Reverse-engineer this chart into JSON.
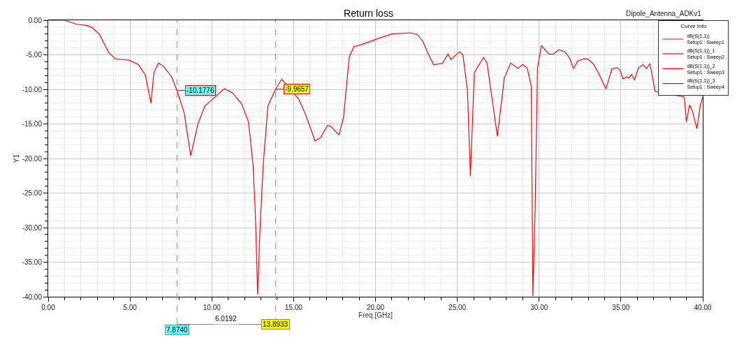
{
  "chart_data": {
    "type": "line",
    "title": "Return loss",
    "subtitle": "Dipole_Antenna_ADKv1",
    "xlabel": "Freq [GHz]",
    "ylabel": "Y1",
    "legend_title": "Curve Info",
    "xlim": [
      0,
      40
    ],
    "xticks": [
      {
        "value": 0,
        "label": "0.00"
      },
      {
        "value": 5,
        "label": "5.00"
      },
      {
        "value": 10,
        "label": "10.00"
      },
      {
        "value": 15,
        "label": "15.00"
      },
      {
        "value": 20,
        "label": "20.00"
      },
      {
        "value": 25,
        "label": "25.00"
      },
      {
        "value": 30,
        "label": "30.00"
      },
      {
        "value": 35,
        "label": "35.00"
      },
      {
        "value": 40,
        "label": "40.00"
      }
    ],
    "ylim": [
      -40,
      0
    ],
    "yticks": [
      {
        "value": 0,
        "label": "0.00"
      },
      {
        "value": -5,
        "label": "-5.00"
      },
      {
        "value": -10,
        "label": "-10.00"
      },
      {
        "value": -15,
        "label": "-15.00"
      },
      {
        "value": -20,
        "label": "-20.00"
      },
      {
        "value": -25,
        "label": "-25.00"
      },
      {
        "value": -30,
        "label": "-30.00"
      },
      {
        "value": -35,
        "label": "-35.00"
      },
      {
        "value": -40,
        "label": "-40.00"
      }
    ],
    "x": [
      0.04,
      1.02,
      1.72,
      2.35,
      2.7,
      3.13,
      3.69,
      4.11,
      4.95,
      5.51,
      5.93,
      6.28,
      6.46,
      6.74,
      7.05,
      7.54,
      7.874,
      8.31,
      8.71,
      9.15,
      9.57,
      10.2,
      10.77,
      11.26,
      11.82,
      12.24,
      12.52,
      12.66,
      12.8,
      12.94,
      13.15,
      13.43,
      13.8933,
      14.27,
      14.76,
      15.32,
      15.74,
      16.3,
      16.65,
      17.07,
      17.28,
      17.77,
      18.05,
      18.4,
      18.68,
      19.18,
      20.02,
      21.0,
      22.12,
      22.54,
      22.89,
      23.24,
      23.55,
      24.08,
      24.43,
      24.61,
      25.13,
      25.34,
      25.62,
      25.8,
      26.04,
      26.6,
      26.81,
      27.17,
      27.45,
      27.87,
      28.26,
      28.71,
      28.99,
      29.27,
      29.52,
      29.62,
      29.76,
      29.9,
      30.14,
      30.6,
      30.88,
      31.2,
      31.58,
      31.86,
      32.1,
      32.35,
      32.77,
      32.98,
      33.33,
      33.68,
      34.08,
      34.45,
      34.74,
      34.95,
      35.13,
      35.37,
      35.5,
      35.65,
      35.83,
      36.07,
      36.35,
      36.56,
      36.77,
      37.09,
      37.54,
      37.79,
      38.3,
      38.87,
      39.0,
      39.19,
      39.36,
      39.64,
      39.85,
      40.0
    ],
    "series": [
      {
        "name": "dB(S(1,1))\nSetup1 : Sweep1",
        "color": "#ff0000",
        "values": [
          0,
          0,
          -0.58,
          -0.75,
          -1.07,
          -2.04,
          -4.64,
          -5.61,
          -5.77,
          -6.42,
          -7.88,
          -12.0,
          -7.56,
          -6.2,
          -6.65,
          -8.2,
          -10.1776,
          -13.4,
          -19.6,
          -15.0,
          -12.4,
          -11.1,
          -9.9,
          -10.5,
          -12.1,
          -14.7,
          -21.0,
          -28.0,
          -39.7,
          -30.3,
          -20.5,
          -12.4,
          -9.9657,
          -8.53,
          null,
          -11.45,
          -13.7,
          -17.45,
          -16.96,
          -15.2,
          -15.35,
          -16.6,
          -14.0,
          -5.3,
          -3.83,
          -3.5,
          -2.76,
          -1.98,
          -1.82,
          -2.04,
          -3.0,
          -4.96,
          -6.42,
          -6.26,
          -4.9,
          -5.67,
          -4.57,
          -4.96,
          -10.15,
          -22.6,
          -7.56,
          -5.38,
          -6.1,
          -12.1,
          -16.8,
          -8.37,
          -6.2,
          -6.97,
          -6.42,
          -6.9,
          -9.5,
          -39.9,
          -27.0,
          -6.9,
          -3.67,
          -4.9,
          -4.9,
          -4.25,
          -4.57,
          -5.45,
          -7.0,
          -5.94,
          -5.55,
          -5.61,
          -6.36,
          -7.88,
          -9.93,
          -7.07,
          -6.85,
          -7.23,
          -8.47,
          -8.2,
          -8.37,
          -7.8,
          -8.63,
          -6.9,
          -6.42,
          -7.0,
          -6.26,
          -10.3,
          null,
          null,
          null,
          -11.1,
          -14.7,
          -12.26,
          -13.07,
          -15.7,
          -12.26,
          -11.1
        ]
      },
      {
        "name": "dB(S(1,1))_1\nSetup1 : Sweep2",
        "color": "#ff0000",
        "values": [
          null,
          null,
          null,
          null,
          null,
          null,
          null,
          null,
          null,
          null,
          null,
          null,
          null,
          null,
          null,
          null,
          null,
          null,
          null,
          null,
          null,
          null,
          null,
          null,
          null,
          null,
          null,
          null,
          null,
          null,
          null,
          null,
          null,
          null,
          null,
          null,
          null,
          null,
          null,
          null,
          null,
          null,
          null,
          null,
          null,
          null,
          null,
          null,
          null,
          null,
          null,
          null,
          null,
          null,
          null,
          null,
          null,
          null,
          null,
          null,
          null,
          null,
          null,
          null,
          null,
          null,
          null,
          null,
          null,
          null,
          null,
          null,
          null,
          null,
          null,
          null,
          null,
          null,
          null,
          null,
          null,
          null,
          null,
          null,
          null,
          null,
          null,
          null,
          null,
          null,
          null,
          null,
          null,
          null,
          null,
          null,
          null,
          null,
          null,
          null,
          null,
          null,
          null,
          null,
          null,
          null,
          null,
          null,
          null,
          null
        ]
      },
      {
        "name": "dB(S(1,1))_2\nSetup1 : Sweep3",
        "color": "#ff0000",
        "values": [
          null,
          null,
          null,
          null,
          null,
          null,
          null,
          null,
          null,
          null,
          null,
          null,
          null,
          null,
          null,
          null,
          null,
          null,
          null,
          null,
          null,
          null,
          null,
          null,
          null,
          null,
          null,
          null,
          null,
          null,
          null,
          null,
          null,
          null,
          null,
          null,
          null,
          null,
          null,
          null,
          null,
          null,
          null,
          null,
          null,
          null,
          null,
          null,
          null,
          null,
          null,
          null,
          null,
          null,
          null,
          null,
          null,
          null,
          null,
          null,
          null,
          null,
          null,
          null,
          null,
          null,
          null,
          null,
          null,
          null,
          null,
          null,
          null,
          null,
          null,
          null,
          null,
          null,
          null,
          null,
          null,
          null,
          null,
          null,
          null,
          null,
          null,
          null,
          null,
          null,
          null,
          null,
          null,
          null,
          null,
          null,
          null,
          null,
          null,
          null,
          null,
          null,
          null,
          null,
          null,
          null,
          null,
          null,
          null,
          null
        ]
      },
      {
        "name": "dB(S(1,1))_3\nSetup1 : Sweep4",
        "color": "#ff0000",
        "values": [
          null,
          null,
          null,
          null,
          null,
          null,
          null,
          null,
          null,
          null,
          null,
          null,
          null,
          null,
          null,
          null,
          null,
          null,
          null,
          null,
          null,
          null,
          null,
          null,
          null,
          null,
          null,
          null,
          null,
          null,
          null,
          null,
          null,
          null,
          null,
          null,
          null,
          null,
          null,
          null,
          null,
          null,
          null,
          null,
          null,
          null,
          null,
          null,
          null,
          null,
          null,
          null,
          null,
          null,
          null,
          null,
          null,
          null,
          null,
          null,
          null,
          null,
          null,
          null,
          null,
          null,
          null,
          null,
          null,
          null,
          null,
          null,
          null,
          null,
          null,
          null,
          null,
          null,
          null,
          null,
          null,
          null,
          null,
          null,
          null,
          null,
          null,
          null,
          null,
          null,
          null,
          null,
          null,
          null,
          null,
          null,
          null,
          null,
          null,
          null,
          null,
          null,
          null,
          null,
          null,
          null,
          null,
          null,
          null,
          null
        ]
      }
    ],
    "ref_lines": [
      {
        "axis": "x",
        "value": 7.874,
        "label": "7.8740",
        "color": "#999999",
        "line_style": "dashed"
      },
      {
        "axis": "x",
        "value": 13.8933,
        "label": "13.8933",
        "color": "#999999",
        "line_style": "dashed"
      }
    ],
    "annotations": [
      {
        "text": "-10.1776",
        "x": 7.874,
        "y": -10.1776
      },
      {
        "text": "-9.9657",
        "x": 13.8933,
        "y": -9.9657
      },
      "6.0192"
    ],
    "grid": true,
    "legend": "top right",
    "marker": "none",
    "line_style": "solid"
  }
}
